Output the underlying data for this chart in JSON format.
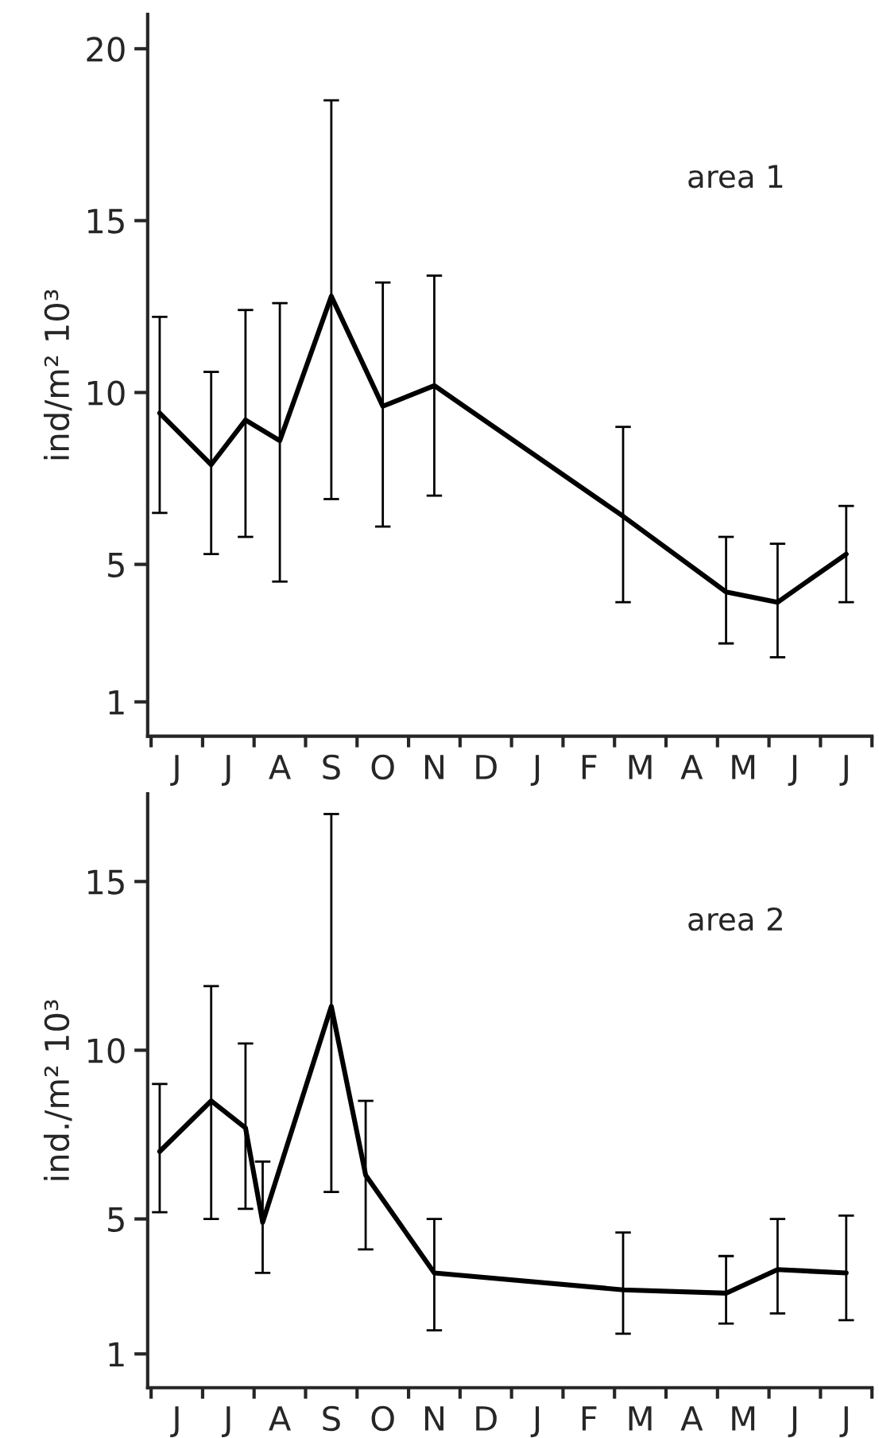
{
  "chart_data": [
    {
      "type": "line",
      "ylabel": "ind/m² 10³",
      "annotations": [
        "area 1"
      ],
      "categories": [
        null,
        "J",
        null,
        null,
        "J",
        null,
        null,
        "A",
        null,
        null,
        "S",
        null,
        null,
        "O",
        null,
        null,
        "N",
        null,
        null,
        "D",
        null,
        null,
        "J",
        null,
        null,
        "F",
        null,
        null,
        "M",
        null,
        null,
        "A",
        null,
        null,
        "M",
        null,
        null,
        "J",
        null,
        null,
        "J",
        null
      ],
      "ylim": [
        0,
        21
      ],
      "yticks": [
        1,
        5,
        10,
        15,
        20
      ],
      "grid": false,
      "marker": "none",
      "line_style": "solid",
      "series": [
        {
          "color": "#000000",
          "values": [
            9.4,
            null,
            null,
            7.9,
            null,
            9.2,
            null,
            8.6,
            null,
            null,
            12.8,
            null,
            null,
            9.6,
            null,
            null,
            10.2,
            null,
            null,
            null,
            null,
            null,
            null,
            null,
            null,
            null,
            null,
            6.4,
            null,
            null,
            null,
            null,
            null,
            4.2,
            null,
            null,
            3.9,
            null,
            null,
            null,
            5.3,
            null
          ],
          "errors": [
            [
              6.5,
              12.2
            ],
            null,
            null,
            [
              5.3,
              10.6
            ],
            null,
            [
              5.8,
              12.4
            ],
            null,
            [
              4.5,
              12.6
            ],
            null,
            null,
            [
              6.9,
              18.5
            ],
            null,
            null,
            [
              6.1,
              13.2
            ],
            null,
            null,
            [
              7.0,
              13.4
            ],
            null,
            null,
            null,
            null,
            null,
            null,
            null,
            null,
            null,
            null,
            [
              3.9,
              9.0
            ],
            null,
            null,
            null,
            null,
            null,
            [
              2.7,
              5.8
            ],
            null,
            null,
            [
              2.3,
              5.6
            ],
            null,
            null,
            null,
            [
              3.9,
              6.7
            ],
            null
          ]
        }
      ]
    },
    {
      "type": "line",
      "ylabel": "ind./m² 10³",
      "annotations": [
        "area 2"
      ],
      "categories": [
        null,
        "J",
        null,
        null,
        "J",
        null,
        null,
        "A",
        null,
        null,
        "S",
        null,
        null,
        "O",
        null,
        null,
        "N",
        null,
        null,
        "D",
        null,
        null,
        "J",
        null,
        null,
        "F",
        null,
        null,
        "M",
        null,
        null,
        "A",
        null,
        null,
        "M",
        null,
        null,
        "J",
        null,
        null,
        "J",
        null
      ],
      "ylim": [
        0,
        17.6
      ],
      "yticks": [
        1,
        5,
        10,
        15
      ],
      "grid": false,
      "marker": "none",
      "line_style": "solid",
      "series": [
        {
          "color": "#000000",
          "values": [
            7.0,
            null,
            null,
            8.5,
            null,
            7.7,
            4.9,
            null,
            null,
            null,
            11.3,
            null,
            6.3,
            null,
            null,
            null,
            3.4,
            null,
            null,
            null,
            null,
            null,
            null,
            null,
            null,
            null,
            null,
            2.9,
            null,
            null,
            null,
            null,
            null,
            2.8,
            null,
            null,
            3.5,
            null,
            null,
            null,
            3.4,
            null
          ],
          "errors": [
            [
              5.2,
              9.0
            ],
            null,
            null,
            [
              5.0,
              11.9
            ],
            null,
            [
              5.3,
              10.2
            ],
            [
              3.4,
              6.7
            ],
            null,
            null,
            null,
            [
              5.8,
              17.0
            ],
            null,
            [
              4.1,
              8.5
            ],
            null,
            null,
            null,
            [
              1.7,
              5.0
            ],
            null,
            null,
            null,
            null,
            null,
            null,
            null,
            null,
            null,
            null,
            [
              1.6,
              4.6
            ],
            null,
            null,
            null,
            null,
            null,
            [
              1.9,
              3.9
            ],
            null,
            null,
            [
              2.2,
              5.0
            ],
            null,
            null,
            null,
            [
              2.0,
              5.1
            ],
            null
          ]
        }
      ]
    }
  ]
}
